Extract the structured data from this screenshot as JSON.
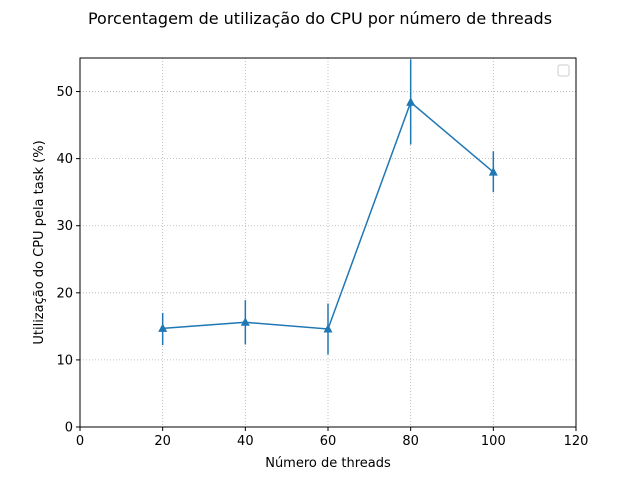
{
  "chart_data": {
    "type": "line",
    "title": "Porcentagem de utilização do CPU por número de threads",
    "xlabel": "Número de threads",
    "ylabel": "Utilização do CPU pela task (%)",
    "xlim": [
      0,
      120
    ],
    "ylim": [
      0,
      55
    ],
    "xticks": [
      0,
      20,
      40,
      60,
      80,
      100,
      120
    ],
    "yticks": [
      0,
      10,
      20,
      30,
      40,
      50
    ],
    "grid": true,
    "legend": "top-right (empty)",
    "marker": "triangle-up",
    "color": "#1f77b4",
    "series": [
      {
        "x": [
          20,
          40,
          60,
          80,
          100
        ],
        "y": [
          14.7,
          15.6,
          14.6,
          48.4,
          38.0
        ],
        "err_low": [
          12.2,
          12.3,
          10.8,
          42.1,
          35.0
        ],
        "err_high": [
          17.0,
          18.9,
          18.4,
          54.8,
          41.1
        ]
      }
    ]
  }
}
